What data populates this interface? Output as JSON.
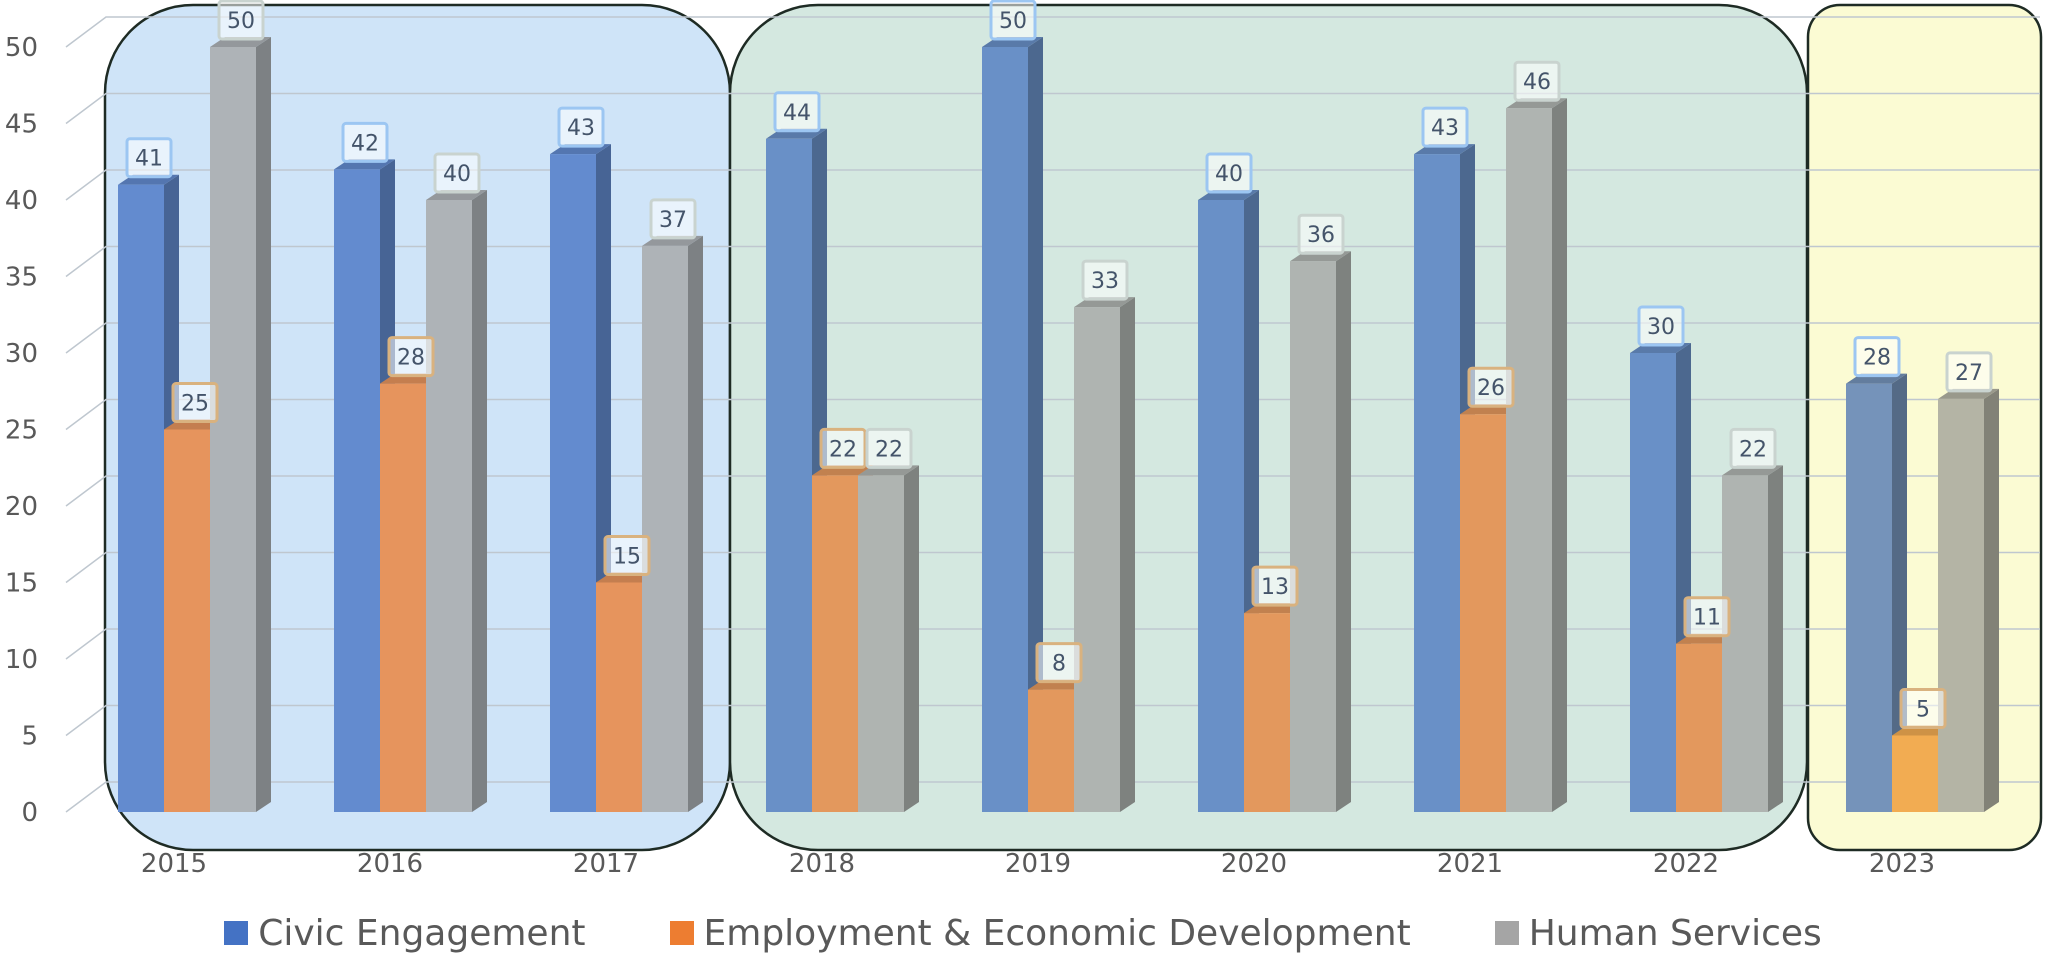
{
  "chart_data": {
    "type": "bar",
    "categories": [
      "2015",
      "2016",
      "2017",
      "2018",
      "2019",
      "2020",
      "2021",
      "2022",
      "2023"
    ],
    "series": [
      {
        "name": "Civic Engagement",
        "values": [
          41,
          42,
          43,
          44,
          50,
          40,
          43,
          30,
          28
        ]
      },
      {
        "name": "Employment & Economic Development",
        "values": [
          25,
          28,
          15,
          22,
          8,
          13,
          26,
          11,
          5
        ]
      },
      {
        "name": "Human Services",
        "values": [
          50,
          40,
          37,
          22,
          33,
          36,
          46,
          22,
          27
        ]
      }
    ],
    "y_ticks": [
      "0",
      "5",
      "10",
      "15",
      "20",
      "25",
      "30",
      "35",
      "40",
      "45",
      "50"
    ],
    "ylim": [
      0,
      50
    ],
    "grid": true,
    "legend_position": "bottom",
    "colors": {
      "series": [
        "#4472c4",
        "#ed7d31",
        "#a5a5a5"
      ],
      "groups": [
        "#cfe4f8",
        "#d4e8e0",
        "#fbfbd3"
      ]
    },
    "groups": [
      {
        "categories": [
          "2015",
          "2016",
          "2017"
        ]
      },
      {
        "categories": [
          "2018",
          "2019",
          "2020",
          "2021",
          "2022"
        ]
      },
      {
        "categories": [
          "2023"
        ]
      }
    ]
  }
}
